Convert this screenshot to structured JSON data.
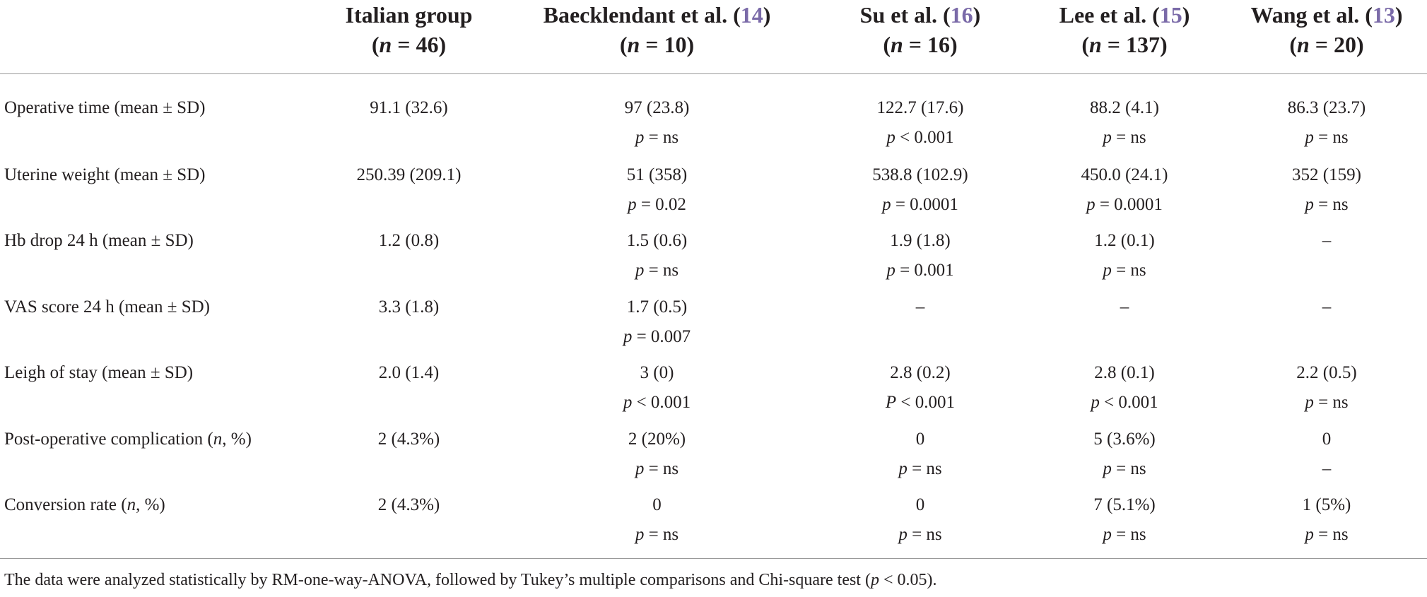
{
  "header": {
    "columns": [
      {
        "name": "Italian group",
        "ref": "",
        "n": "46"
      },
      {
        "name": "Baecklendant et al. (",
        "ref": "14",
        "n": "10"
      },
      {
        "name": "Su et al. (",
        "ref": "16",
        "n": "16"
      },
      {
        "name": "Lee et al. (",
        "ref": "15",
        "n": "137"
      },
      {
        "name": "Wang et al. (",
        "ref": "13",
        "n": "20"
      }
    ],
    "close_paren": ")",
    "n_open": "(",
    "n_letter": "n",
    "n_eq": " = ",
    "n_close": ")"
  },
  "rows": [
    {
      "label": [
        "Operative time (mean ± SD)"
      ],
      "cells": [
        {
          "v": "91.1 (32.6)",
          "p": ""
        },
        {
          "v": "97 (23.8)",
          "p": "= ns"
        },
        {
          "v": "122.7 (17.6)",
          "p": "< 0.001"
        },
        {
          "v": "88.2 (4.1)",
          "p": "= ns"
        },
        {
          "v": "86.3 (23.7)",
          "p": "= ns"
        }
      ]
    },
    {
      "label": [
        "Uterine weight (mean ± SD)"
      ],
      "cells": [
        {
          "v": "250.39 (209.1)",
          "p": ""
        },
        {
          "v": "51 (358)",
          "p": "= 0.02"
        },
        {
          "v": "538.8 (102.9)",
          "p": "= 0.0001"
        },
        {
          "v": "450.0 (24.1)",
          "p": "= 0.0001"
        },
        {
          "v": "352 (159)",
          "p": "= ns"
        }
      ]
    },
    {
      "label": [
        "Hb drop 24 h (mean ± SD)"
      ],
      "cells": [
        {
          "v": "1.2 (0.8)",
          "p": ""
        },
        {
          "v": "1.5 (0.6)",
          "p": "= ns"
        },
        {
          "v": "1.9 (1.8)",
          "p": "= 0.001"
        },
        {
          "v": "1.2 (0.1)",
          "p": "= ns"
        },
        {
          "v": "–",
          "p": ""
        }
      ]
    },
    {
      "label": [
        "VAS score 24 h (mean ± SD)"
      ],
      "cells": [
        {
          "v": "3.3 (1.8)",
          "p": ""
        },
        {
          "v": "1.7 (0.5)",
          "p": "= 0.007"
        },
        {
          "v": "–",
          "p": ""
        },
        {
          "v": "–",
          "p": ""
        },
        {
          "v": "–",
          "p": ""
        }
      ]
    },
    {
      "label": [
        "Leigh of stay (mean ± SD)"
      ],
      "cells": [
        {
          "v": "2.0 (1.4)",
          "p": ""
        },
        {
          "v": "3 (0)",
          "p": "< 0.001"
        },
        {
          "v": "2.8 (0.2)",
          "p": "< 0.001",
          "pLetter": "P"
        },
        {
          "v": "2.8 (0.1)",
          "p": "< 0.001"
        },
        {
          "v": "2.2 (0.5)",
          "p": "= ns"
        }
      ]
    },
    {
      "label": [
        "Post-operative complication (",
        "n",
        ", %)"
      ],
      "cells": [
        {
          "v": "2 (4.3%)",
          "p": ""
        },
        {
          "v": "2 (20%)",
          "p": "= ns"
        },
        {
          "v": "0",
          "p": "= ns"
        },
        {
          "v": "5 (3.6%)",
          "p": "= ns"
        },
        {
          "v": "0",
          "p": "",
          "pText": "–"
        }
      ]
    },
    {
      "label": [
        "Conversion rate (",
        "n",
        ", %)"
      ],
      "cells": [
        {
          "v": "2 (4.3%)",
          "p": ""
        },
        {
          "v": "0",
          "p": "= ns"
        },
        {
          "v": "0",
          "p": "= ns"
        },
        {
          "v": "7 (5.1%)",
          "p": "= ns"
        },
        {
          "v": "1 (5%)",
          "p": "= ns"
        }
      ]
    }
  ],
  "p_letter": "p",
  "footnote": {
    "before": "The data were analyzed statistically by RM-one-way-ANOVA, followed by Tukey’s multiple comparisons and Chi-square test (",
    "p": "p",
    "after": " < 0.05)."
  }
}
